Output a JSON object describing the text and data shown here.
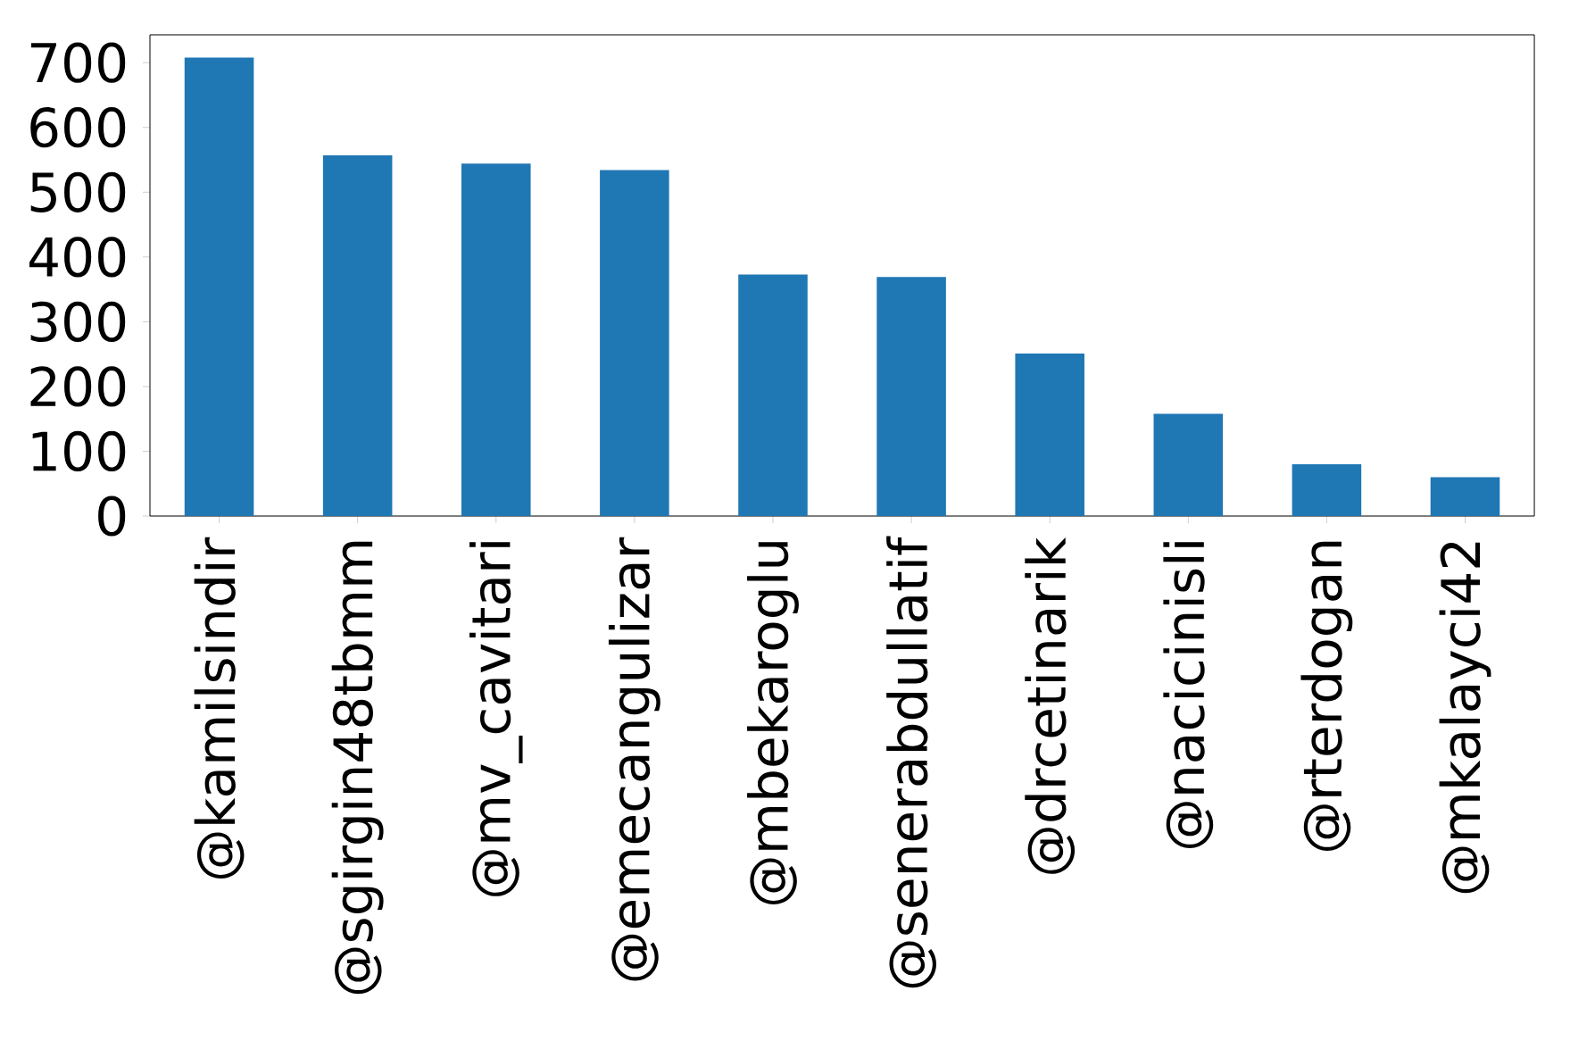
{
  "chart_data": {
    "type": "bar",
    "categories": [
      "@kamilsindir",
      "@sgirgin48tbmm",
      "@mv_cavitari",
      "@emecangulizar",
      "@mbekaroglu",
      "@senerabdullatif",
      "@drcetinarik",
      "@nacicinisli",
      "@rterdogan",
      "@mkalayci42"
    ],
    "values": [
      708,
      557,
      544,
      534,
      373,
      369,
      251,
      158,
      80,
      60
    ],
    "color": "#1f77b4",
    "ylim": [
      0,
      743
    ],
    "yticks": [
      0,
      100,
      200,
      300,
      400,
      500,
      600,
      700
    ]
  }
}
